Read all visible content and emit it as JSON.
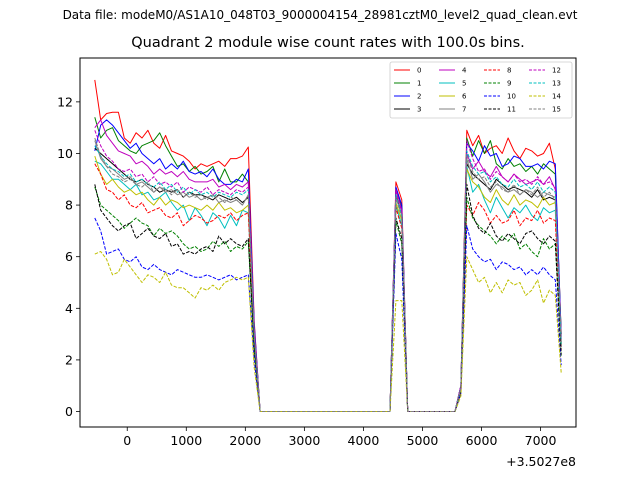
{
  "suptitle": "Data file: modeM0/AS1A10_048T03_9000004154_28981cztM0_level2_quad_clean.evt",
  "chart_data": {
    "type": "line",
    "title": "Quadrant 2 module wise count rates with 100.0s bins.",
    "xlabel": "",
    "ylabel": "",
    "x_offset_label": "+3.5027e8",
    "xlim": [
      -800,
      7600
    ],
    "ylim": [
      -0.6,
      13.7
    ],
    "xticks": [
      0,
      1000,
      2000,
      3000,
      4000,
      5000,
      6000,
      7000
    ],
    "xtick_labels": [
      "0",
      "1000",
      "2000",
      "3000",
      "4000",
      "5000",
      "6000",
      "7000"
    ],
    "yticks": [
      0,
      2,
      4,
      6,
      8,
      10,
      12
    ],
    "ytick_labels": [
      "0",
      "2",
      "4",
      "6",
      "8",
      "10",
      "12"
    ],
    "x": [
      -550,
      -450,
      -350,
      -250,
      -150,
      -50,
      50,
      150,
      250,
      350,
      450,
      550,
      650,
      750,
      850,
      950,
      1050,
      1150,
      1250,
      1350,
      1450,
      1550,
      1650,
      1750,
      1850,
      1950,
      2050,
      2150,
      2250,
      2350,
      2450,
      4450,
      4550,
      4650,
      4750,
      4850,
      5550,
      5650,
      5750,
      5850,
      5950,
      6050,
      6150,
      6250,
      6350,
      6450,
      6550,
      6650,
      6750,
      6850,
      6950,
      7050,
      7150,
      7250,
      7350
    ],
    "legend_location": "upper right",
    "legend_columns": 4,
    "series": [
      {
        "name": "0",
        "color": "#ff0000",
        "dash": "solid",
        "values": [
          12.85,
          11.3,
          11.55,
          11.6,
          11.6,
          10.6,
          10.4,
          10.8,
          10.6,
          10.9,
          10.4,
          10.2,
          10.7,
          10.1,
          10.0,
          9.9,
          9.7,
          9.4,
          9.6,
          9.5,
          9.6,
          9.7,
          9.5,
          9.8,
          9.8,
          9.9,
          10.25,
          3.5,
          0,
          0,
          0,
          0,
          8.9,
          8.2,
          0,
          0,
          0,
          1.0,
          10.9,
          10.3,
          10.7,
          10.0,
          10.2,
          10.3,
          10.0,
          10.6,
          10.1,
          9.8,
          10.2,
          10.1,
          9.9,
          10.0,
          10.4,
          9.4,
          3.0
        ]
      },
      {
        "name": "1",
        "color": "#008000",
        "dash": "solid",
        "values": [
          11.4,
          10.6,
          10.9,
          11.0,
          10.5,
          10.3,
          10.1,
          10.0,
          10.3,
          10.4,
          10.5,
          10.8,
          10.3,
          9.9,
          9.5,
          9.6,
          9.3,
          9.5,
          9.2,
          9.3,
          9.5,
          8.9,
          9.4,
          8.9,
          8.9,
          9.2,
          8.9,
          3.3,
          0,
          0,
          0,
          0,
          8.6,
          7.9,
          0,
          0,
          0,
          1.0,
          10.6,
          9.9,
          10.5,
          10.0,
          10.5,
          9.6,
          9.4,
          9.8,
          9.5,
          9.6,
          9.3,
          9.5,
          9.2,
          9.6,
          9.4,
          9.2,
          3.0
        ]
      },
      {
        "name": "2",
        "color": "#0000ff",
        "dash": "solid",
        "values": [
          10.1,
          11.1,
          11.3,
          11.1,
          10.8,
          10.5,
          10.2,
          10.4,
          10.0,
          9.8,
          9.6,
          9.8,
          9.4,
          9.6,
          9.4,
          9.7,
          9.3,
          9.2,
          9.3,
          9.1,
          9.4,
          9.0,
          8.8,
          8.8,
          9.0,
          8.9,
          9.4,
          3.4,
          0,
          0,
          0,
          0,
          8.7,
          8.0,
          0,
          0,
          0,
          1.0,
          10.4,
          10.1,
          9.7,
          10.3,
          9.9,
          10.0,
          9.5,
          9.6,
          9.9,
          9.8,
          9.5,
          9.5,
          9.6,
          9.4,
          9.7,
          9.6,
          2.9
        ]
      },
      {
        "name": "3",
        "color": "#000000",
        "dash": "solid",
        "values": [
          10.2,
          10.0,
          9.8,
          9.6,
          9.4,
          9.2,
          9.0,
          8.9,
          9.0,
          8.8,
          8.7,
          8.5,
          8.6,
          8.5,
          8.6,
          8.3,
          8.5,
          8.4,
          8.4,
          8.3,
          8.2,
          8.4,
          8.3,
          8.2,
          8.3,
          8.1,
          8.3,
          3.0,
          0,
          0,
          0,
          0,
          8.4,
          7.6,
          0,
          0,
          0,
          0.9,
          9.6,
          9.2,
          9.0,
          8.8,
          8.6,
          9.0,
          8.8,
          8.6,
          8.7,
          8.6,
          8.5,
          8.3,
          8.6,
          8.2,
          8.3,
          8.2,
          2.6
        ]
      },
      {
        "name": "4",
        "color": "#bf00bf",
        "dash": "solid",
        "values": [
          11.0,
          11.3,
          10.7,
          10.4,
          10.1,
          10.0,
          9.9,
          9.6,
          9.7,
          9.5,
          9.2,
          9.4,
          9.2,
          9.3,
          9.1,
          9.3,
          9.0,
          8.9,
          8.9,
          8.9,
          9.0,
          8.7,
          8.8,
          8.6,
          8.8,
          8.7,
          8.9,
          3.2,
          0,
          0,
          0,
          0,
          8.6,
          7.8,
          0,
          0,
          0,
          1.0,
          10.0,
          9.4,
          9.7,
          9.3,
          9.1,
          9.5,
          9.1,
          8.9,
          9.2,
          9.0,
          8.8,
          8.9,
          9.0,
          8.8,
          9.1,
          8.6,
          2.8
        ]
      },
      {
        "name": "5",
        "color": "#00bfbf",
        "dash": "solid",
        "values": [
          9.7,
          9.6,
          9.3,
          9.0,
          9.0,
          8.8,
          8.6,
          8.8,
          8.4,
          8.5,
          8.2,
          8.3,
          8.5,
          8.1,
          7.8,
          8.0,
          7.4,
          7.9,
          7.6,
          7.2,
          7.7,
          7.5,
          7.1,
          7.6,
          7.2,
          7.8,
          7.7,
          2.8,
          0,
          0,
          0,
          0,
          8.0,
          7.2,
          0,
          0,
          0,
          0.9,
          9.5,
          8.5,
          8.8,
          8.2,
          7.7,
          8.3,
          7.9,
          7.5,
          7.9,
          7.7,
          8.0,
          7.6,
          7.4,
          7.9,
          7.7,
          7.8,
          2.5
        ]
      },
      {
        "name": "6",
        "color": "#bfbf00",
        "dash": "solid",
        "values": [
          9.9,
          9.2,
          8.8,
          9.0,
          8.7,
          8.5,
          8.6,
          8.4,
          8.5,
          8.2,
          8.0,
          8.3,
          8.0,
          8.2,
          8.1,
          7.9,
          8.0,
          7.9,
          7.8,
          8.0,
          7.8,
          8.1,
          7.8,
          7.9,
          7.7,
          7.8,
          8.0,
          2.9,
          0,
          0,
          0,
          0,
          8.1,
          7.4,
          0,
          0,
          0,
          0.9,
          9.4,
          8.9,
          8.7,
          8.3,
          8.1,
          8.6,
          8.2,
          8.0,
          8.4,
          8.0,
          8.2,
          8.1,
          7.9,
          8.3,
          8.0,
          8.1,
          2.6
        ]
      },
      {
        "name": "7",
        "color": "#808080",
        "dash": "solid",
        "values": [
          10.5,
          9.8,
          9.5,
          9.4,
          9.2,
          9.0,
          9.1,
          8.8,
          8.9,
          8.7,
          8.5,
          8.7,
          8.5,
          8.6,
          8.4,
          8.5,
          8.3,
          8.4,
          8.2,
          8.3,
          8.4,
          8.1,
          8.2,
          8.1,
          8.2,
          8.0,
          8.4,
          3.0,
          0,
          0,
          0,
          0,
          8.3,
          7.6,
          0,
          0,
          0,
          0.9,
          9.8,
          9.0,
          9.2,
          8.9,
          8.5,
          8.8,
          8.7,
          8.5,
          8.6,
          8.4,
          8.6,
          8.5,
          8.3,
          8.5,
          8.4,
          8.3,
          2.7
        ]
      },
      {
        "name": "8",
        "color": "#ff0000",
        "dash": "dashed",
        "values": [
          9.6,
          9.2,
          8.6,
          8.5,
          8.2,
          8.4,
          8.0,
          7.9,
          8.1,
          7.7,
          7.8,
          7.9,
          7.6,
          7.5,
          7.7,
          7.2,
          7.4,
          7.6,
          7.5,
          7.3,
          7.4,
          7.6,
          7.5,
          7.7,
          7.4,
          7.6,
          7.7,
          2.8,
          0,
          0,
          0,
          0,
          7.9,
          7.1,
          0,
          0,
          0,
          0.8,
          8.0,
          7.6,
          8.1,
          7.8,
          7.3,
          7.6,
          7.3,
          7.4,
          7.8,
          7.2,
          7.5,
          7.4,
          7.8,
          7.3,
          7.5,
          7.4,
          2.4
        ]
      },
      {
        "name": "9",
        "color": "#008000",
        "dash": "dashed",
        "values": [
          8.7,
          8.0,
          7.8,
          7.6,
          7.4,
          7.1,
          7.3,
          7.5,
          7.3,
          7.2,
          6.8,
          7.1,
          6.9,
          7.0,
          6.8,
          6.5,
          6.3,
          6.4,
          6.2,
          6.3,
          6.6,
          6.4,
          6.6,
          6.2,
          6.4,
          6.3,
          6.6,
          2.4,
          0,
          0,
          0,
          0,
          7.4,
          6.5,
          0,
          0,
          0,
          0.8,
          8.3,
          7.5,
          7.2,
          7.0,
          6.8,
          6.5,
          6.8,
          6.6,
          6.9,
          6.3,
          6.5,
          6.2,
          6.0,
          6.7,
          6.3,
          6.5,
          2.1
        ]
      },
      {
        "name": "10",
        "color": "#0000ff",
        "dash": "dashed",
        "values": [
          7.5,
          7.0,
          6.1,
          6.2,
          6.3,
          5.9,
          5.8,
          6.0,
          5.6,
          5.5,
          5.7,
          5.5,
          5.4,
          5.3,
          5.5,
          5.4,
          5.3,
          5.2,
          5.2,
          5.3,
          5.2,
          5.1,
          5.2,
          5.3,
          5.1,
          5.2,
          5.3,
          2.0,
          0,
          0,
          0,
          0,
          6.9,
          5.9,
          0,
          0,
          0,
          0.7,
          7.2,
          6.3,
          6.0,
          5.8,
          5.9,
          5.5,
          5.8,
          5.7,
          5.5,
          5.6,
          5.3,
          5.5,
          5.3,
          5.6,
          5.3,
          5.1,
          1.8
        ]
      },
      {
        "name": "11",
        "color": "#000000",
        "dash": "dashed",
        "values": [
          8.8,
          7.8,
          7.5,
          7.2,
          7.0,
          7.2,
          7.3,
          6.7,
          6.9,
          7.1,
          6.8,
          6.7,
          6.9,
          6.4,
          6.5,
          6.1,
          6.2,
          6.1,
          6.3,
          6.4,
          6.2,
          6.8,
          6.5,
          6.7,
          6.5,
          6.4,
          6.7,
          2.5,
          0,
          0,
          0,
          0,
          7.5,
          6.7,
          0,
          0,
          0,
          0.8,
          8.8,
          7.6,
          7.1,
          6.9,
          7.3,
          6.8,
          6.6,
          6.9,
          6.7,
          6.5,
          6.9,
          7.0,
          6.7,
          6.5,
          6.8,
          6.6,
          2.2
        ]
      },
      {
        "name": "12",
        "color": "#bf00bf",
        "dash": "dashed",
        "values": [
          10.9,
          10.3,
          9.9,
          9.7,
          9.4,
          9.3,
          9.4,
          9.1,
          9.2,
          8.9,
          9.1,
          8.8,
          8.9,
          8.7,
          8.9,
          8.5,
          8.7,
          8.6,
          8.5,
          8.7,
          8.4,
          8.6,
          8.5,
          8.4,
          8.6,
          8.5,
          8.7,
          3.1,
          0,
          0,
          0,
          0,
          8.5,
          7.7,
          0,
          0,
          0,
          0.9,
          10.5,
          9.8,
          9.3,
          9.4,
          9.0,
          9.3,
          9.1,
          8.9,
          9.2,
          8.9,
          9.0,
          8.8,
          9.1,
          8.8,
          8.9,
          8.7,
          2.7
        ]
      },
      {
        "name": "13",
        "color": "#00bfbf",
        "dash": "dashed",
        "values": [
          10.3,
          9.9,
          9.6,
          9.4,
          9.3,
          9.1,
          9.2,
          8.9,
          9.0,
          8.8,
          8.7,
          8.9,
          8.6,
          8.8,
          8.5,
          8.7,
          8.4,
          8.6,
          8.4,
          8.5,
          8.3,
          8.5,
          8.4,
          8.3,
          8.5,
          8.4,
          8.6,
          3.0,
          0,
          0,
          0,
          0,
          8.4,
          7.6,
          0,
          0,
          0,
          0.9,
          10.1,
          9.5,
          9.2,
          9.3,
          8.9,
          9.1,
          8.8,
          8.7,
          9.0,
          8.7,
          8.8,
          8.6,
          8.9,
          8.5,
          8.7,
          8.5,
          2.6
        ]
      },
      {
        "name": "14",
        "color": "#bfbf00",
        "dash": "dashed",
        "values": [
          6.1,
          6.2,
          5.9,
          5.3,
          5.4,
          5.9,
          5.6,
          5.3,
          5.0,
          5.3,
          5.2,
          5.0,
          5.4,
          4.9,
          4.8,
          4.8,
          4.6,
          4.4,
          4.8,
          4.7,
          4.9,
          4.7,
          5.0,
          5.1,
          5.2,
          5.1,
          5.2,
          1.7,
          0,
          0,
          0,
          0,
          4.3,
          4.3,
          0,
          0,
          0,
          0.6,
          6.0,
          5.5,
          5.0,
          5.2,
          4.6,
          5.0,
          4.6,
          5.1,
          4.9,
          5.0,
          4.5,
          4.7,
          5.1,
          4.2,
          4.7,
          4.5,
          1.5
        ]
      },
      {
        "name": "15",
        "color": "#808080",
        "dash": "dashed",
        "values": [
          10.6,
          9.9,
          9.5,
          9.2,
          9.1,
          8.9,
          9.0,
          8.8,
          8.7,
          8.9,
          8.5,
          8.7,
          8.6,
          8.4,
          8.6,
          8.3,
          8.5,
          8.3,
          8.4,
          8.2,
          8.4,
          8.3,
          8.1,
          8.3,
          8.2,
          8.0,
          8.4,
          2.9,
          0,
          0,
          0,
          0,
          8.3,
          7.5,
          0,
          0,
          0,
          0.9,
          9.9,
          9.3,
          9.0,
          9.1,
          8.7,
          8.9,
          8.6,
          8.5,
          8.8,
          8.4,
          8.6,
          8.4,
          8.7,
          8.3,
          8.5,
          8.2,
          2.6
        ]
      }
    ]
  }
}
